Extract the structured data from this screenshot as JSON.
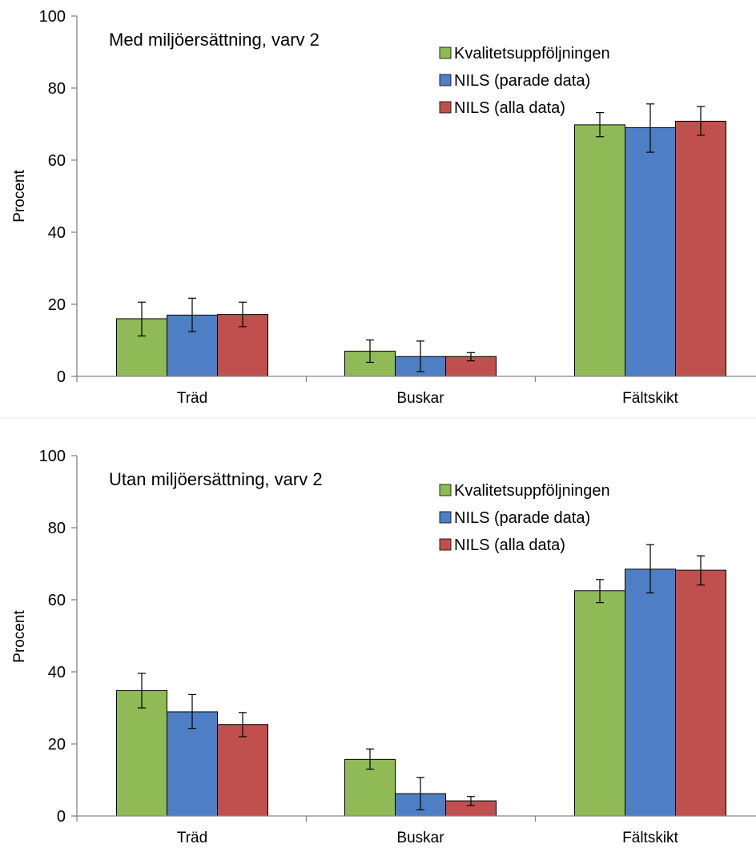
{
  "chart_data": [
    {
      "type": "bar",
      "title": "Med miljöersättning, varv 2",
      "ylabel": "Procent",
      "xlabel": "",
      "ylim": [
        0,
        100
      ],
      "yticks": [
        0,
        20,
        40,
        60,
        80,
        100
      ],
      "grid": false,
      "legend_position": "top-right",
      "categories": [
        "Träd",
        "Buskar",
        "Fältskikt"
      ],
      "series": [
        {
          "name": "Kvalitetsuppföljningen",
          "color": "#8fba55",
          "values": [
            16,
            7,
            69.8
          ],
          "error_low": [
            11.2,
            3.9,
            66.5
          ],
          "error_high": [
            20.6,
            10.1,
            73.2
          ]
        },
        {
          "name": "NILS (parade data)",
          "color": "#4e7fc4",
          "values": [
            17,
            5.5,
            69
          ],
          "error_low": [
            12.4,
            1.3,
            62.2
          ],
          "error_high": [
            21.7,
            9.8,
            75.6
          ]
        },
        {
          "name": "NILS (alla data)",
          "color": "#c0504d",
          "values": [
            17.2,
            5.5,
            70.8
          ],
          "error_low": [
            13.8,
            4.3,
            66.9
          ],
          "error_high": [
            20.6,
            6.6,
            74.9
          ]
        }
      ]
    },
    {
      "type": "bar",
      "title": "Utan miljöersättning, varv 2",
      "ylabel": "Procent",
      "xlabel": "",
      "ylim": [
        0,
        100
      ],
      "yticks": [
        0,
        20,
        40,
        60,
        80,
        100
      ],
      "grid": false,
      "legend_position": "top-right",
      "categories": [
        "Träd",
        "Buskar",
        "Fältskikt"
      ],
      "series": [
        {
          "name": "Kvalitetsuppföljningen",
          "color": "#8fba55",
          "values": [
            34.8,
            15.7,
            62.5
          ],
          "error_low": [
            30,
            13,
            59.2
          ],
          "error_high": [
            39.6,
            18.6,
            65.6
          ]
        },
        {
          "name": "NILS (parade data)",
          "color": "#4e7fc4",
          "values": [
            28.9,
            6.2,
            68.5
          ],
          "error_low": [
            24.3,
            1.7,
            61.9
          ],
          "error_high": [
            33.7,
            10.7,
            75.3
          ]
        },
        {
          "name": "NILS (alla data)",
          "color": "#c0504d",
          "values": [
            25.4,
            4.2,
            68.2
          ],
          "error_low": [
            22,
            2.9,
            64.1
          ],
          "error_high": [
            28.7,
            5.4,
            72.2
          ]
        }
      ]
    }
  ]
}
